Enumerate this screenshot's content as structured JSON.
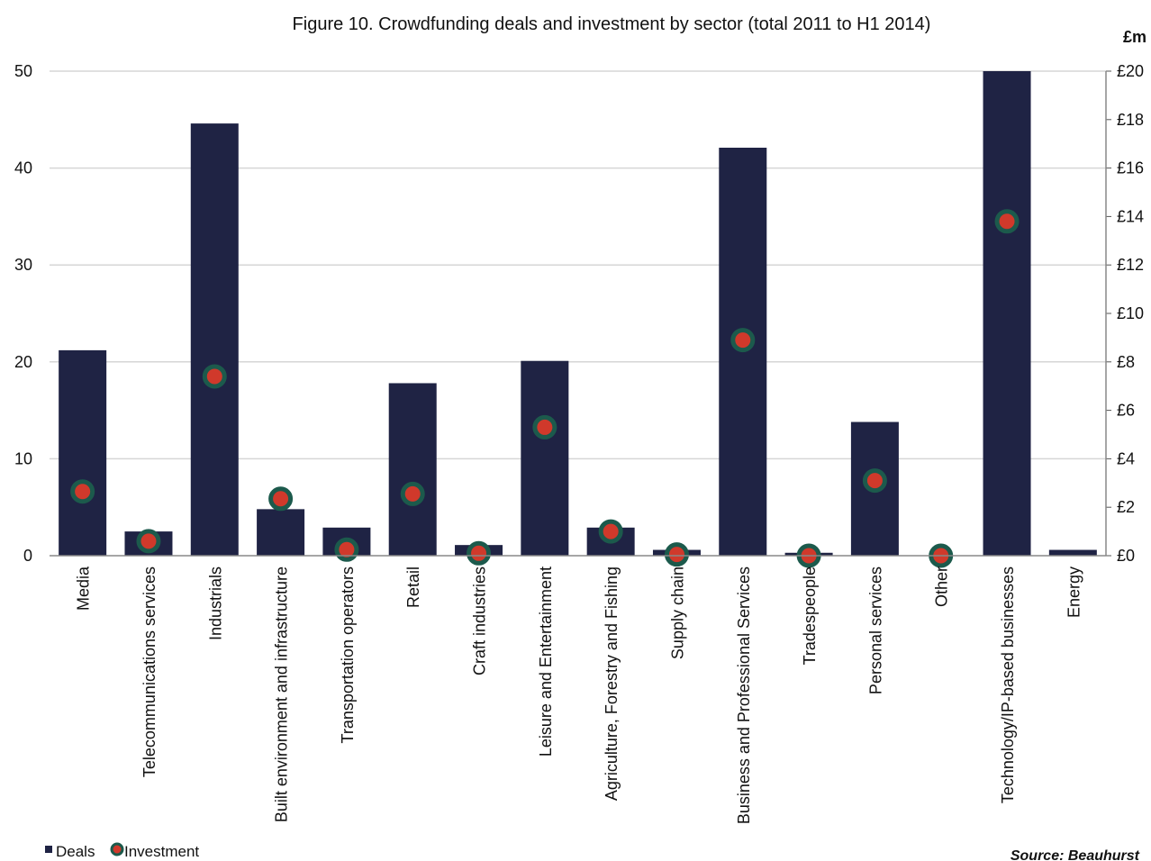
{
  "chart_data": {
    "type": "bar",
    "title": "Figure 10. Crowdfunding deals and investment by sector (total 2011 to H1 2014)",
    "categories": [
      "Media",
      "Telecommunications services",
      "Industrials",
      "Built environment and infrastructure",
      "Transportation operators",
      "Retail",
      "Craft industries",
      "Leisure and Entertainment",
      "Agriculture, Forestry and Fishing",
      "Supply chain",
      "Business and Professional Services",
      "Tradespeople",
      "Personal services",
      "Other",
      "Technology/IP-based businesses",
      "Energy"
    ],
    "series": [
      {
        "name": "Deals",
        "type": "bar",
        "axis": "left",
        "color": "#1f2344",
        "values": [
          21.2,
          2.5,
          44.6,
          4.8,
          2.9,
          17.8,
          1.1,
          20.1,
          2.9,
          0.6,
          42.1,
          0.3,
          13.8,
          0,
          50,
          0.6
        ]
      },
      {
        "name": "Investment",
        "type": "scatter",
        "axis": "right",
        "color": "#d0392b",
        "edge_color": "#1c5a4c",
        "values": [
          2.65,
          0.6,
          7.4,
          2.35,
          0.25,
          2.55,
          0.1,
          5.3,
          1.0,
          0.05,
          8.9,
          0.0,
          3.1,
          0.0,
          13.8,
          null
        ]
      }
    ],
    "y_left": {
      "ylim": [
        0,
        50
      ],
      "ticks": [
        "0",
        "10",
        "20",
        "30",
        "40",
        "50"
      ],
      "tick_values": [
        0,
        10,
        20,
        30,
        40,
        50
      ]
    },
    "y_right": {
      "ylim": [
        0,
        20
      ],
      "unit_label": "£m",
      "ticks": [
        "£0",
        "£2",
        "£4",
        "£6",
        "£8",
        "£10",
        "£12",
        "£14",
        "£16",
        "£18",
        "£20"
      ],
      "tick_values": [
        0,
        2,
        4,
        6,
        8,
        10,
        12,
        14,
        16,
        18,
        20
      ]
    },
    "grid": true,
    "legend": {
      "placement": "bottom-left",
      "entries": [
        "Deals",
        "Investment"
      ]
    },
    "source": "Source: Beauhurst"
  }
}
